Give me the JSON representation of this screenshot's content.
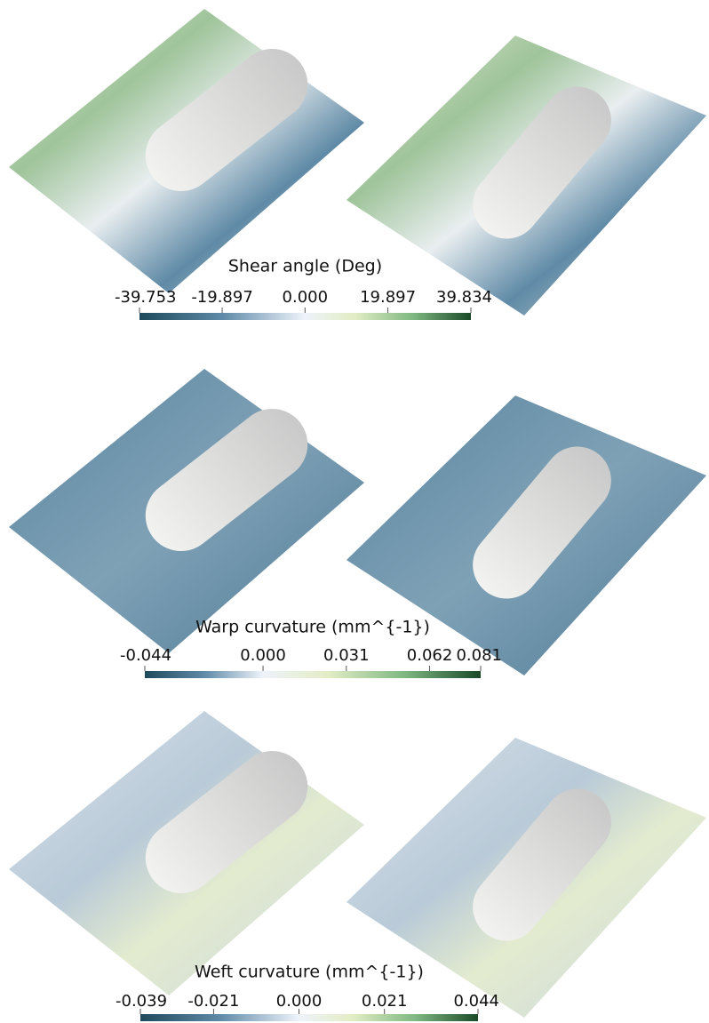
{
  "panels": [
    {
      "title": "Shear angle (Deg)",
      "clim": [
        -39.753,
        39.834
      ],
      "ticks": [
        -39.753,
        -19.897,
        {
          "value": 0,
          "label": "0.000"
        },
        19.897,
        39.834
      ]
    },
    {
      "title": "Warp curvature (mm^{-1})",
      "clim": [
        -0.044,
        0.081
      ],
      "ticks": [
        -0.044,
        {
          "value": 0,
          "label": "0.000"
        },
        0.031,
        0.062,
        0.081
      ]
    },
    {
      "title": "Weft curvature (mm^{-1})",
      "clim": [
        -0.039,
        0.044
      ],
      "ticks": [
        -0.039,
        -0.021,
        {
          "value": 0,
          "label": "0.000"
        },
        0.021,
        0.044
      ]
    }
  ]
}
